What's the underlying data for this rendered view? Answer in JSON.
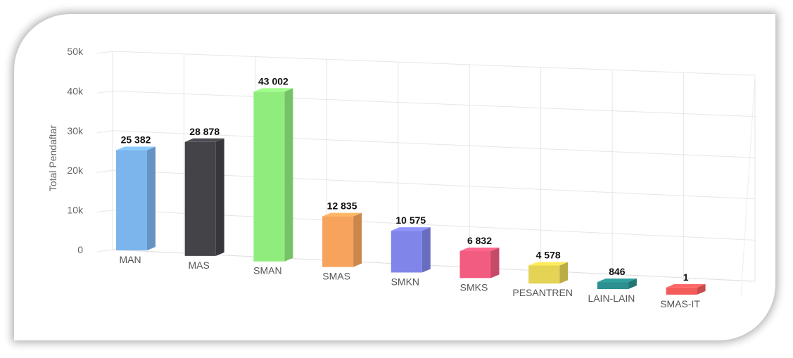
{
  "chart_data": {
    "type": "bar",
    "ylabel": "Total Pendaftar",
    "ylim": [
      0,
      50000
    ],
    "y_ticks": [
      "0",
      "10k",
      "20k",
      "30k",
      "40k",
      "50k"
    ],
    "grid": true,
    "categories": [
      "MAN",
      "MAS",
      "SMAN",
      "SMAS",
      "SMKN",
      "SMKS",
      "PESANTREN",
      "LAIN-LAIN",
      "SMAS-IT"
    ],
    "values": [
      25382,
      28878,
      43002,
      12835,
      10575,
      6832,
      4578,
      846,
      1
    ],
    "data_labels": [
      "25 382",
      "28 878",
      "43 002",
      "12 835",
      "10 575",
      "6 832",
      "4 578",
      "846",
      "1"
    ],
    "colors": [
      "#7cb5ec",
      "#434348",
      "#90ed7d",
      "#f7a35c",
      "#8085e9",
      "#f15c80",
      "#e4d354",
      "#2b908f",
      "#f45b5b"
    ]
  }
}
